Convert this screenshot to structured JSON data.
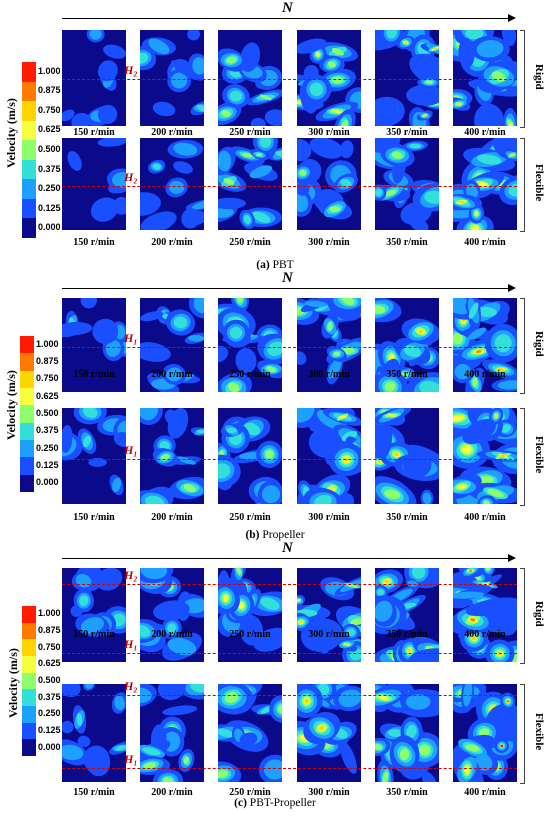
{
  "axis_symbol": "N",
  "legend": {
    "title": "Velocity (m/s)",
    "ticks": [
      "1.000",
      "0.875",
      "0.750",
      "0.625",
      "0.500",
      "0.375",
      "0.250",
      "0.125",
      "0.000"
    ],
    "colors": [
      "#ff1a00",
      "#ff7a00",
      "#ffd500",
      "#f5ff3d",
      "#8cff6a",
      "#33e0d9",
      "#1ea0ff",
      "#1a4fff",
      "#0a0a8a"
    ]
  },
  "speeds": [
    "150 r/min",
    "200 r/min",
    "250 r/min",
    "300 r/min",
    "350 r/min",
    "400 r/min"
  ],
  "row_labels": [
    "Rigid",
    "Flexible"
  ],
  "panels": [
    {
      "caption_letter": "(a)",
      "caption_text": "PBT",
      "lines": [
        {
          "label": "H₂"
        }
      ],
      "pbt_ticks": [
        "1.000",
        "0.875",
        "0.750",
        "0.625",
        "0.500",
        "0.375",
        "0.250",
        "0.125",
        "0.000"
      ]
    },
    {
      "caption_letter": "(b)",
      "caption_text": "Propeller",
      "lines": [
        {
          "label": "H₁"
        }
      ]
    },
    {
      "caption_letter": "(c)",
      "caption_text": "PBT-Propeller",
      "lines": [
        {
          "label": "H₂"
        },
        {
          "label": "H₁"
        }
      ]
    }
  ]
}
